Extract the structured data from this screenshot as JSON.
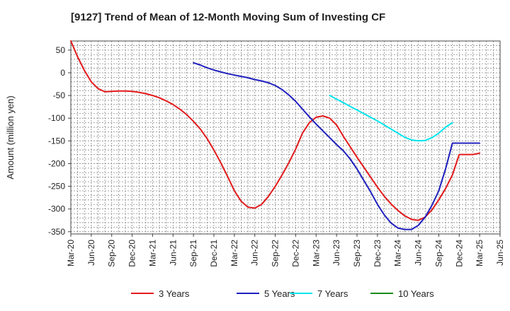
{
  "chart_data": {
    "type": "line",
    "title": "[9127]  Trend of Mean of 12-Month Moving Sum of Investing CF",
    "xlabel": "",
    "ylabel": "Amount (million yen)",
    "ylim": [
      -355,
      70
    ],
    "yticks": [
      50,
      0,
      -50,
      -100,
      -150,
      -200,
      -250,
      -300,
      -350
    ],
    "x_tick_labels": [
      "Mar-20",
      "Jun-20",
      "Sep-20",
      "Dec-20",
      "Mar-21",
      "Jun-21",
      "Sep-21",
      "Dec-21",
      "Mar-22",
      "Jun-22",
      "Sep-22",
      "Dec-22",
      "Mar-23",
      "Jun-23",
      "Sep-23",
      "Dec-23",
      "Mar-24",
      "Jun-24",
      "Sep-24",
      "Dec-24",
      "Mar-25",
      "Jun-25"
    ],
    "x_range_months": [
      0,
      63
    ],
    "grid": true,
    "legend_position": "bottom",
    "series": [
      {
        "name": "3 Years",
        "color": "#e31a1c",
        "x": [
          0,
          1,
          2,
          3,
          4,
          5,
          6,
          7,
          8,
          9,
          10,
          11,
          12,
          13,
          14,
          15,
          16,
          17,
          18,
          19,
          20,
          21,
          22,
          23,
          24,
          25,
          26,
          27,
          28,
          29,
          30,
          31,
          32,
          33,
          34,
          35,
          36,
          37,
          38,
          39,
          40,
          41,
          42,
          43,
          44,
          45,
          46,
          47,
          48,
          49,
          50,
          51,
          52,
          53,
          54,
          55,
          56,
          57,
          58,
          59,
          60
        ],
        "values": [
          70,
          35,
          5,
          -20,
          -35,
          -42,
          -41,
          -40,
          -40,
          -41,
          -43,
          -46,
          -50,
          -55,
          -62,
          -70,
          -80,
          -92,
          -107,
          -124,
          -145,
          -170,
          -198,
          -228,
          -260,
          -283,
          -296,
          -298,
          -290,
          -272,
          -250,
          -225,
          -198,
          -168,
          -133,
          -110,
          -98,
          -95,
          -100,
          -115,
          -140,
          -163,
          -186,
          -208,
          -230,
          -252,
          -272,
          -289,
          -303,
          -315,
          -323,
          -325,
          -318,
          -302,
          -280,
          -255,
          -225,
          -180,
          -180,
          -180,
          -177
        ]
      },
      {
        "name": "5 Years",
        "color": "#1f1fbf",
        "x": [
          18,
          19,
          20,
          21,
          22,
          23,
          24,
          25,
          26,
          27,
          28,
          29,
          30,
          31,
          32,
          33,
          34,
          35,
          36,
          37,
          38,
          39,
          40,
          41,
          42,
          43,
          44,
          45,
          46,
          47,
          48,
          49,
          50,
          51,
          52,
          53,
          54,
          55,
          56,
          57,
          58,
          59,
          60
        ],
        "values": [
          22,
          17,
          11,
          6,
          2,
          -2,
          -5,
          -8,
          -11,
          -15,
          -18,
          -22,
          -28,
          -37,
          -49,
          -63,
          -80,
          -97,
          -113,
          -128,
          -143,
          -158,
          -172,
          -190,
          -212,
          -237,
          -262,
          -290,
          -313,
          -331,
          -342,
          -345,
          -345,
          -336,
          -318,
          -292,
          -260,
          -212,
          -155,
          -155,
          -155,
          -155,
          -155
        ]
      },
      {
        "name": "7 Years",
        "color": "#00e5ee",
        "x": [
          38,
          39,
          40,
          41,
          42,
          43,
          44,
          45,
          46,
          47,
          48,
          49,
          50,
          51,
          52,
          53,
          54,
          55,
          56
        ],
        "values": [
          -50,
          -58,
          -66,
          -74,
          -82,
          -90,
          -98,
          -106,
          -115,
          -124,
          -133,
          -142,
          -148,
          -150,
          -149,
          -143,
          -133,
          -120,
          -110
        ]
      },
      {
        "name": "10 Years",
        "color": "#1a8c1a",
        "x": [],
        "values": []
      }
    ]
  }
}
